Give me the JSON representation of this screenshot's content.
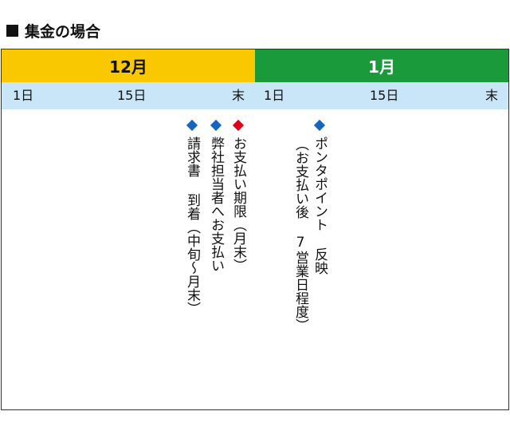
{
  "heading": {
    "label": "集金の場合"
  },
  "months": {
    "dec": "12月",
    "jan": "1月"
  },
  "days": {
    "dec_1": "1日",
    "dec_15": "15日",
    "dec_end": "末",
    "jan_1": "1日",
    "jan_15": "15日",
    "jan_end": "末"
  },
  "events": {
    "payment_deadline": "お支払い期限（月末）",
    "company_payment": "弊社担当者へお支払い",
    "invoice_arrival": "請求書 到着（中旬〜月末）",
    "ponta_line1": "ポンタポイント 反映",
    "ponta_line2": "（お支払い後 7営業日程度）"
  },
  "colors": {
    "dec": "#f9c800",
    "jan": "#1b9a3c",
    "days_bg": "#c8e6f8",
    "marker_blue": "#1565c0",
    "marker_red": "#e0001b"
  }
}
